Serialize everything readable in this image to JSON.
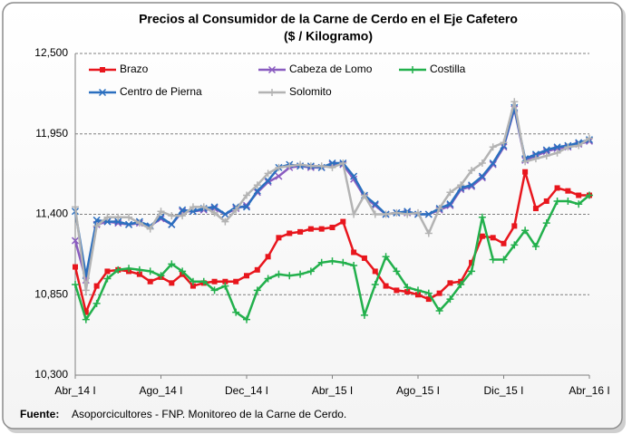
{
  "chart_data": {
    "type": "line",
    "title": "Precios al Consumidor de la Carne de Cerdo en el Eje Cafetero",
    "subtitle": "($ / Kilogramo)",
    "categories": [
      "Abr_14 I",
      null,
      null,
      null,
      null,
      null,
      null,
      null,
      "Ago_14 I",
      null,
      null,
      null,
      null,
      null,
      null,
      null,
      "Dec_14 I",
      null,
      null,
      null,
      null,
      null,
      null,
      null,
      "Abr_15 I",
      null,
      null,
      null,
      null,
      null,
      null,
      null,
      "Ago_15 I",
      null,
      null,
      null,
      null,
      null,
      null,
      null,
      "Dic_15 I",
      null,
      null,
      null,
      null,
      null,
      null,
      null,
      "Abr_16 I"
    ],
    "series": [
      {
        "name": "Brazo",
        "color": "#e8161d",
        "marker": "square",
        "values": [
          11040,
          10730,
          10910,
          11010,
          11020,
          11010,
          10990,
          10940,
          10970,
          10930,
          10990,
          10910,
          10930,
          10940,
          10940,
          10940,
          10980,
          11020,
          11110,
          11240,
          11270,
          11280,
          11300,
          11300,
          11310,
          11350,
          11140,
          11100,
          11010,
          10910,
          10880,
          10870,
          10850,
          10820,
          10860,
          10930,
          10940,
          11070,
          11250,
          11240,
          11200,
          11320,
          11690,
          11440,
          11490,
          11580,
          11560,
          11530,
          11530
        ]
      },
      {
        "name": "Cabeza de Lomo",
        "color": "#8a5cc0",
        "marker": "x",
        "values": [
          11220,
          10950,
          11330,
          11350,
          11340,
          11330,
          11340,
          11320,
          11370,
          11330,
          11420,
          11420,
          11430,
          11440,
          11400,
          11440,
          11460,
          11550,
          11620,
          11660,
          11720,
          11730,
          11720,
          11720,
          11740,
          11740,
          11640,
          11520,
          11460,
          11400,
          11410,
          11410,
          11400,
          11400,
          11430,
          11460,
          11570,
          11590,
          11650,
          11740,
          11860,
          12120,
          11770,
          11800,
          11830,
          11850,
          11860,
          11880,
          11900
        ]
      },
      {
        "name": "Costilla",
        "color": "#22b04c",
        "marker": "plus",
        "values": [
          10920,
          10680,
          10790,
          10960,
          11020,
          11030,
          11020,
          11010,
          10980,
          11060,
          11010,
          10940,
          10940,
          10880,
          10910,
          10730,
          10680,
          10880,
          10960,
          10990,
          10980,
          10990,
          11010,
          11070,
          11080,
          11070,
          11050,
          10710,
          10920,
          11110,
          11010,
          10900,
          10880,
          10860,
          10740,
          10820,
          10920,
          11010,
          11380,
          11090,
          11090,
          11190,
          11290,
          11180,
          11340,
          11490,
          11490,
          11470,
          11530
        ]
      },
      {
        "name": "Centro de Pierna",
        "color": "#2b6fbf",
        "marker": "x",
        "values": [
          11420,
          10980,
          11360,
          11350,
          11350,
          11330,
          11350,
          11320,
          11380,
          11330,
          11430,
          11420,
          11440,
          11450,
          11400,
          11450,
          11450,
          11560,
          11630,
          11720,
          11740,
          11730,
          11730,
          11720,
          11750,
          11750,
          11660,
          11530,
          11470,
          11400,
          11410,
          11420,
          11400,
          11400,
          11440,
          11470,
          11580,
          11600,
          11660,
          11750,
          11870,
          12130,
          11780,
          11810,
          11840,
          11860,
          11870,
          11890,
          11910
        ]
      },
      {
        "name": "Solomito",
        "color": "#b3b3b3",
        "marker": "plus",
        "values": [
          11450,
          10880,
          11320,
          11380,
          11380,
          11380,
          11340,
          11300,
          11420,
          11390,
          11390,
          11450,
          11450,
          11410,
          11350,
          11430,
          11530,
          11600,
          11680,
          11720,
          11730,
          11740,
          11730,
          11730,
          11720,
          11750,
          11400,
          11530,
          11400,
          11400,
          11410,
          11400,
          11410,
          11270,
          11440,
          11550,
          11600,
          11700,
          11750,
          11860,
          11890,
          12170,
          11760,
          11780,
          11800,
          11820,
          11860,
          11870,
          11920
        ]
      }
    ],
    "ylim": [
      10300,
      12500
    ],
    "yticks": [
      {
        "value": 10300,
        "label": "10,300"
      },
      {
        "value": 10850,
        "label": "10,850"
      },
      {
        "value": 11400,
        "label": "11,400"
      },
      {
        "value": 11950,
        "label": "11,950"
      },
      {
        "value": 12500,
        "label": "12,500"
      }
    ],
    "grid": true,
    "source": {
      "label": "Fuente:",
      "text": "Asoporcicultores - FNP. Monitoreo de la Carne de Cerdo."
    }
  }
}
